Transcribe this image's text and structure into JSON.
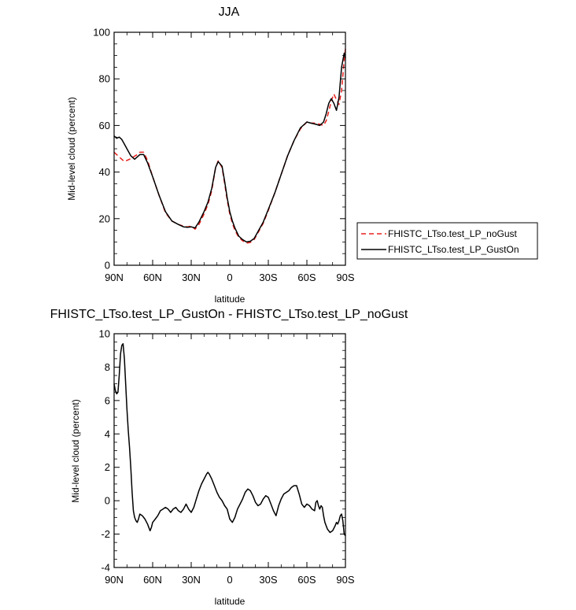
{
  "chart_data": [
    {
      "type": "line",
      "title": "JJA",
      "xlabel": "latitude",
      "ylabel": "Mid-level cloud (percent)",
      "xlim": [
        90,
        -90
      ],
      "ylim": [
        0,
        100
      ],
      "xticks": [
        90,
        60,
        30,
        0,
        -30,
        -60,
        -90
      ],
      "xtick_labels": [
        "90N",
        "60N",
        "30N",
        "0",
        "30S",
        "60S",
        "90S"
      ],
      "yticks": [
        0,
        20,
        40,
        60,
        80,
        100
      ],
      "ytick_labels": [
        "0",
        "20",
        "40",
        "60",
        "80",
        "100"
      ],
      "legend_position": "outside-right",
      "series": [
        {
          "name": "FHISTC_LTso.test_LP_noGust",
          "color": "#e8201c",
          "style": "dashed",
          "x": [
            90,
            86,
            82,
            78,
            75,
            72,
            70,
            67,
            64,
            60,
            55,
            50,
            45,
            40,
            36,
            33,
            30,
            27,
            24,
            20,
            17,
            14,
            11,
            9,
            6,
            4,
            2,
            0,
            -2,
            -4,
            -7,
            -10,
            -13,
            -16,
            -19,
            -22,
            -26,
            -30,
            -35,
            -40,
            -45,
            -50,
            -55,
            -60,
            -63,
            -67,
            -70,
            -73,
            -75,
            -77,
            -79,
            -81,
            -83,
            -85,
            -87,
            -89,
            -90
          ],
          "y": [
            48.5,
            46.5,
            44.5,
            45.5,
            46.5,
            47.5,
            48.5,
            48.5,
            45,
            38,
            30,
            22.5,
            19,
            17.5,
            16.8,
            16.5,
            16.8,
            15.5,
            17.5,
            22,
            26,
            32,
            42,
            44.8,
            42,
            35,
            28,
            22,
            18,
            15,
            12,
            10.5,
            9.5,
            9.8,
            11,
            14,
            18,
            23.5,
            31,
            39,
            47,
            53.5,
            58.5,
            61.5,
            61,
            61,
            60.5,
            60,
            62,
            66,
            70.5,
            73.5,
            71,
            69,
            75,
            88,
            93
          ]
        },
        {
          "name": "FHISTC_LTso.test_LP_GustOn",
          "color": "#000000",
          "style": "solid",
          "x": [
            90,
            88,
            86,
            84,
            82,
            80,
            77,
            74,
            72,
            70,
            67,
            64,
            60,
            55,
            50,
            45,
            40,
            36,
            33,
            30,
            27,
            24,
            20,
            17,
            14,
            11,
            9,
            6,
            4,
            2,
            0,
            -2,
            -4,
            -7,
            -10,
            -13,
            -16,
            -19,
            -22,
            -26,
            -30,
            -35,
            -40,
            -45,
            -50,
            -55,
            -60,
            -63,
            -67,
            -70,
            -73,
            -75,
            -77,
            -79,
            -81,
            -83,
            -85,
            -87,
            -89,
            -90
          ],
          "y": [
            55.5,
            54.5,
            55,
            54,
            52,
            50,
            47,
            45.5,
            46.5,
            47.5,
            47.5,
            44,
            38,
            30,
            23,
            19,
            17.5,
            16.5,
            16.3,
            16.5,
            16,
            18.5,
            23,
            27,
            33,
            42,
            44.5,
            42.5,
            36,
            29,
            23,
            19,
            16,
            12.5,
            11,
            10,
            10.3,
            11.5,
            14.5,
            18.5,
            24,
            31,
            39,
            47,
            53.5,
            59,
            61.5,
            61,
            60.5,
            60,
            61.5,
            65,
            69.5,
            71.5,
            69.5,
            66.5,
            72,
            85,
            91,
            89
          ]
        }
      ]
    },
    {
      "type": "line",
      "title": "FHISTC_LTso.test_LP_GustOn - FHISTC_LTso.test_LP_noGust",
      "xlabel": "latitude",
      "ylabel": "Mid-level cloud (percent)",
      "xlim": [
        90,
        -90
      ],
      "ylim": [
        -4,
        10
      ],
      "xticks": [
        90,
        60,
        30,
        0,
        -30,
        -60,
        -90
      ],
      "xtick_labels": [
        "90N",
        "60N",
        "30N",
        "0",
        "30S",
        "60S",
        "90S"
      ],
      "yticks": [
        -4,
        -2,
        0,
        2,
        4,
        6,
        8,
        10
      ],
      "ytick_labels": [
        "-4",
        "-2",
        "0",
        "2",
        "4",
        "6",
        "8",
        "10"
      ],
      "series": [
        {
          "color": "#000000",
          "style": "solid",
          "x": [
            90,
            89,
            88,
            87,
            86,
            85,
            84,
            83,
            82,
            81,
            80,
            79,
            78,
            77,
            76,
            75,
            74,
            73,
            72,
            71,
            70,
            68,
            66,
            64,
            62,
            61,
            60,
            58,
            56,
            54,
            52,
            50,
            48,
            46,
            44,
            42,
            40,
            38,
            36,
            34,
            32,
            30,
            28,
            26,
            24,
            22,
            20,
            18,
            17,
            16,
            14,
            12,
            10,
            8,
            6,
            4,
            2,
            0,
            -2,
            -4,
            -6,
            -8,
            -10,
            -12,
            -14,
            -16,
            -18,
            -20,
            -22,
            -24,
            -26,
            -28,
            -30,
            -32,
            -34,
            -36,
            -38,
            -40,
            -42,
            -44,
            -46,
            -48,
            -50,
            -52,
            -54,
            -56,
            -58,
            -60,
            -62,
            -64,
            -66,
            -67,
            -68,
            -69,
            -70,
            -71,
            -72,
            -73,
            -74,
            -76,
            -78,
            -80,
            -82,
            -83,
            -84,
            -85,
            -86,
            -87,
            -88,
            -89,
            -90
          ],
          "y": [
            7,
            6.6,
            6.4,
            6.5,
            7.5,
            8.8,
            9.3,
            9.4,
            8.5,
            7,
            5.5,
            4.2,
            3.2,
            2,
            0.5,
            -0.6,
            -1,
            -1.2,
            -1.3,
            -1.1,
            -0.8,
            -0.9,
            -1.1,
            -1.4,
            -1.8,
            -1.6,
            -1.3,
            -1.1,
            -0.9,
            -0.6,
            -0.5,
            -0.4,
            -0.5,
            -0.7,
            -0.5,
            -0.4,
            -0.6,
            -0.7,
            -0.5,
            -0.2,
            -0.5,
            -0.7,
            -0.4,
            0.1,
            0.6,
            1,
            1.3,
            1.6,
            1.7,
            1.6,
            1.3,
            0.9,
            0.5,
            0.2,
            0,
            -0.3,
            -0.5,
            -1.1,
            -1.3,
            -1,
            -0.5,
            -0.2,
            0.1,
            0.5,
            0.7,
            0.6,
            0.3,
            -0.1,
            -0.3,
            -0.2,
            0.1,
            0.3,
            0.2,
            -0.2,
            -0.6,
            -0.9,
            -0.3,
            0.1,
            0.4,
            0.5,
            0.6,
            0.8,
            0.9,
            0.9,
            0.4,
            -0.2,
            -0.4,
            -0.2,
            -0.3,
            -0.5,
            -0.6,
            -0.1,
            0,
            -0.3,
            -0.5,
            -0.3,
            -0.4,
            -0.9,
            -1.3,
            -1.7,
            -1.9,
            -1.8,
            -1.5,
            -1.3,
            -1.4,
            -1.2,
            -0.9,
            -0.8,
            -1.2,
            -2,
            -2.1
          ]
        }
      ]
    }
  ]
}
